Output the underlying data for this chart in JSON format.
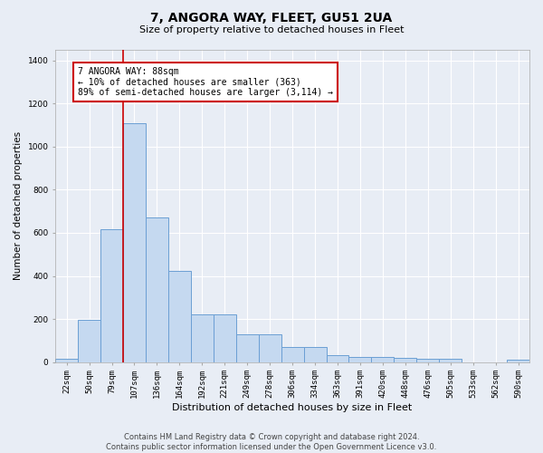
{
  "title1": "7, ANGORA WAY, FLEET, GU51 2UA",
  "title2": "Size of property relative to detached houses in Fleet",
  "xlabel": "Distribution of detached houses by size in Fleet",
  "ylabel": "Number of detached properties",
  "bar_labels": [
    "22sqm",
    "50sqm",
    "79sqm",
    "107sqm",
    "136sqm",
    "164sqm",
    "192sqm",
    "221sqm",
    "249sqm",
    "278sqm",
    "306sqm",
    "334sqm",
    "363sqm",
    "391sqm",
    "420sqm",
    "448sqm",
    "476sqm",
    "505sqm",
    "533sqm",
    "562sqm",
    "590sqm"
  ],
  "bar_values": [
    15,
    195,
    615,
    1110,
    670,
    425,
    220,
    220,
    130,
    130,
    70,
    70,
    30,
    25,
    25,
    20,
    13,
    13,
    0,
    0,
    10
  ],
  "bar_color": "#c5d9f0",
  "bar_edge_color": "#6b9fd4",
  "red_line_x": 2.5,
  "red_line_color": "#cc0000",
  "annotation_text": "7 ANGORA WAY: 88sqm\n← 10% of detached houses are smaller (363)\n89% of semi-detached houses are larger (3,114) →",
  "annotation_box_color": "#ffffff",
  "annotation_box_edge": "#cc0000",
  "ylim": [
    0,
    1450
  ],
  "yticks": [
    0,
    200,
    400,
    600,
    800,
    1000,
    1200,
    1400
  ],
  "footer1": "Contains HM Land Registry data © Crown copyright and database right 2024.",
  "footer2": "Contains public sector information licensed under the Open Government Licence v3.0.",
  "background_color": "#e8edf5",
  "grid_color": "#ffffff",
  "title1_fontsize": 10,
  "title2_fontsize": 8,
  "xlabel_fontsize": 8,
  "ylabel_fontsize": 7.5,
  "tick_fontsize": 6.5,
  "annotation_fontsize": 7,
  "footer_fontsize": 6
}
